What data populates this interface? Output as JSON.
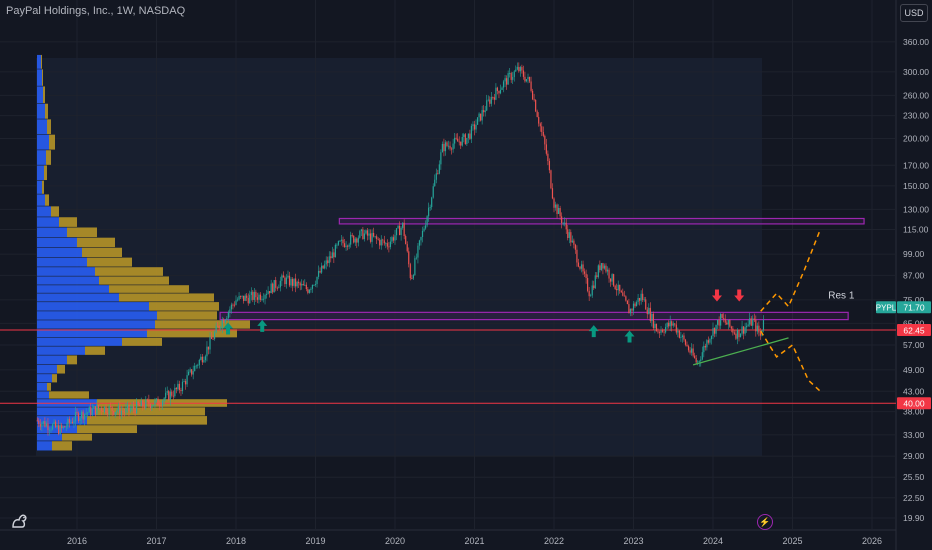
{
  "header": {
    "title": "PayPal Holdings, Inc., 1W, NASDAQ",
    "currency": "USD"
  },
  "chart_data": {
    "type": "line",
    "symbol": "PYPL",
    "y_scale": "log",
    "ylim": [
      18.5,
      380
    ],
    "y_ticks": [
      360,
      300,
      260,
      230,
      200,
      170,
      150,
      130,
      115,
      99,
      87,
      75,
      65,
      57,
      49,
      43,
      38,
      33,
      29,
      25.5,
      22.5,
      19.9
    ],
    "y_tick_labels": [
      "360.00",
      "300.00",
      "260.00",
      "230.00",
      "200.00",
      "170.00",
      "150.00",
      "130.00",
      "115.00",
      "99.00",
      "87.00",
      "75.00",
      "65.00",
      "57.00",
      "49.00",
      "43.00",
      "38.00",
      "33.00",
      "29.00",
      "25.50",
      "22.50",
      "19.90"
    ],
    "x_tick_labels": [
      "2016",
      "2017",
      "2018",
      "2019",
      "2020",
      "2021",
      "2022",
      "2023",
      "2024",
      "2025",
      "2026"
    ],
    "x_ticks": [
      2016,
      2017,
      2018,
      2019,
      2020,
      2021,
      2022,
      2023,
      2024,
      2025,
      2026
    ],
    "price_series": {
      "name": "PYPL",
      "x": [
        2015.5,
        2015.8,
        2016.0,
        2016.3,
        2016.6,
        2016.9,
        2017.0,
        2017.3,
        2017.6,
        2017.8,
        2018.0,
        2018.3,
        2018.6,
        2018.9,
        2019.0,
        2019.3,
        2019.6,
        2019.9,
        2020.1,
        2020.2,
        2020.4,
        2020.6,
        2020.9,
        2021.0,
        2021.2,
        2021.4,
        2021.55,
        2021.7,
        2021.9,
        2022.0,
        2022.2,
        2022.45,
        2022.6,
        2022.8,
        2022.95,
        2023.1,
        2023.3,
        2023.5,
        2023.8,
        2023.95,
        2024.1,
        2024.3,
        2024.5,
        2024.6,
        2024.65
      ],
      "y": [
        36,
        34,
        37,
        39,
        38,
        40,
        40,
        44,
        54,
        65,
        75,
        77,
        85,
        80,
        85,
        105,
        112,
        105,
        118,
        85,
        125,
        190,
        200,
        215,
        255,
        285,
        305,
        280,
        185,
        135,
        110,
        78,
        95,
        80,
        70,
        77,
        62,
        65,
        51,
        60,
        67,
        61,
        66,
        60,
        71.7
      ],
      "up_color": "#26a69a",
      "down_color": "#ef5350"
    },
    "horizontal_levels": [
      {
        "value": 62.45,
        "label": "62.45",
        "color": "#f23645"
      },
      {
        "value": 40.0,
        "label": "40.00",
        "color": "#f23645"
      }
    ],
    "last_price": {
      "value": 71.7,
      "label": "71.70",
      "symbol": "PYPL",
      "color": "#26a69a"
    },
    "zones": [
      {
        "x0": 2019.3,
        "x1": 2025.9,
        "y0": 119,
        "y1": 123,
        "color": "#9c27b0"
      },
      {
        "x0": 2017.8,
        "x1": 2025.7,
        "y0": 66.5,
        "y1": 69.5,
        "color": "#9c27b0"
      }
    ],
    "annotations": [
      {
        "text": "Res 1",
        "x": 2025.45,
        "y": 75.5
      }
    ],
    "trendline": {
      "x": [
        2023.75,
        2024.95
      ],
      "y": [
        50.5,
        59.5
      ],
      "color": "#4caf50"
    },
    "projections": [
      {
        "x": [
          2024.6,
          2024.8,
          2024.95,
          2025.15,
          2025.35
        ],
        "y": [
          70,
          78,
          72,
          90,
          115
        ],
        "color": "#ff9800"
      },
      {
        "x": [
          2024.6,
          2024.8,
          2025.0,
          2025.2,
          2025.35
        ],
        "y": [
          62,
          53,
          57,
          46,
          43
        ],
        "color": "#ff9800"
      }
    ],
    "arrows_up": [
      {
        "x": 2017.9,
        "y": 63
      },
      {
        "x": 2018.33,
        "y": 64
      },
      {
        "x": 2022.5,
        "y": 62
      },
      {
        "x": 2022.95,
        "y": 60
      }
    ],
    "arrows_down": [
      {
        "x": 2024.05,
        "y": 77
      },
      {
        "x": 2024.33,
        "y": 77
      }
    ],
    "volume_profile": {
      "bins": [
        {
          "y": 320,
          "a": 4,
          "b": 1
        },
        {
          "y": 290,
          "a": 5,
          "b": 1
        },
        {
          "y": 260,
          "a": 6,
          "b": 2
        },
        {
          "y": 235,
          "a": 8,
          "b": 3
        },
        {
          "y": 215,
          "a": 10,
          "b": 4
        },
        {
          "y": 195,
          "a": 12,
          "b": 6
        },
        {
          "y": 178,
          "a": 9,
          "b": 5
        },
        {
          "y": 162,
          "a": 7,
          "b": 3
        },
        {
          "y": 148,
          "a": 5,
          "b": 2
        },
        {
          "y": 137,
          "a": 8,
          "b": 4
        },
        {
          "y": 128,
          "a": 14,
          "b": 8
        },
        {
          "y": 120,
          "a": 22,
          "b": 18
        },
        {
          "y": 113,
          "a": 30,
          "b": 30
        },
        {
          "y": 106,
          "a": 40,
          "b": 38
        },
        {
          "y": 100,
          "a": 45,
          "b": 40
        },
        {
          "y": 94,
          "a": 50,
          "b": 45
        },
        {
          "y": 89,
          "a": 58,
          "b": 68
        },
        {
          "y": 84,
          "a": 62,
          "b": 70
        },
        {
          "y": 80,
          "a": 72,
          "b": 80
        },
        {
          "y": 76,
          "a": 82,
          "b": 95
        },
        {
          "y": 72,
          "a": 112,
          "b": 70
        },
        {
          "y": 68,
          "a": 120,
          "b": 60
        },
        {
          "y": 64.5,
          "a": 118,
          "b": 95
        },
        {
          "y": 61,
          "a": 110,
          "b": 90
        },
        {
          "y": 58,
          "a": 85,
          "b": 40
        },
        {
          "y": 55,
          "a": 48,
          "b": 20
        },
        {
          "y": 52,
          "a": 30,
          "b": 10
        },
        {
          "y": 49,
          "a": 20,
          "b": 8
        },
        {
          "y": 46.5,
          "a": 15,
          "b": 5
        },
        {
          "y": 44,
          "a": 10,
          "b": 4
        },
        {
          "y": 42,
          "a": 12,
          "b": 40
        },
        {
          "y": 40,
          "a": 60,
          "b": 130
        },
        {
          "y": 38,
          "a": 58,
          "b": 110
        },
        {
          "y": 36,
          "a": 50,
          "b": 120
        },
        {
          "y": 34,
          "a": 40,
          "b": 60
        },
        {
          "y": 32.5,
          "a": 25,
          "b": 30
        },
        {
          "y": 31,
          "a": 15,
          "b": 20
        }
      ],
      "a_color": "#2962ff",
      "b_color": "#c9a227"
    }
  },
  "icons": {
    "logo": "tradingview-logo-icon",
    "bolt": "lightning-icon"
  }
}
